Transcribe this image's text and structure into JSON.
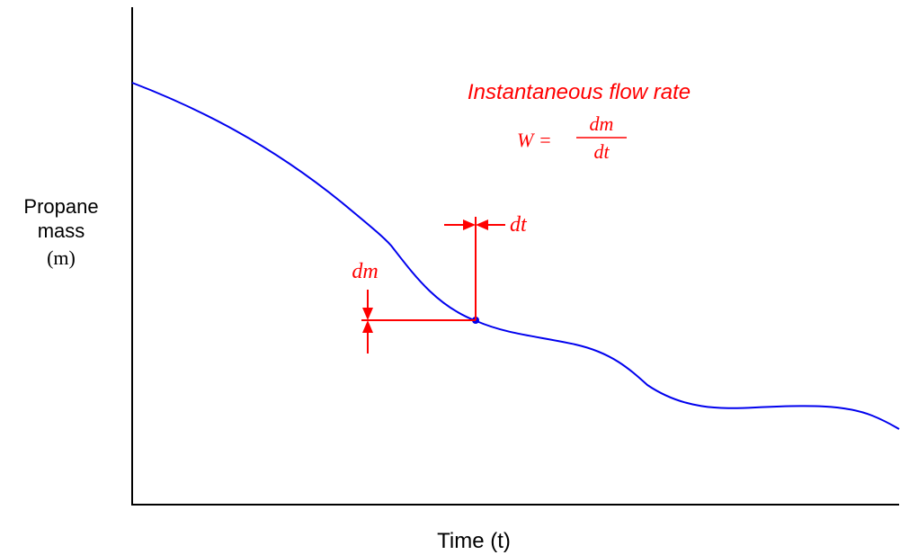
{
  "axes": {
    "y_label_line1": "Propane",
    "y_label_line2": "mass",
    "y_label_symbol": "(m)",
    "x_label": "Time (t)"
  },
  "annotation": {
    "title": "Instantaneous flow rate",
    "equation_lhs": "W =",
    "numerator": "dm",
    "denominator": "dt",
    "dt_label": "dt",
    "dm_label": "dm"
  },
  "colors": {
    "axis": "#000000",
    "curve": "#0000ee",
    "annotation": "#ff0000"
  }
}
